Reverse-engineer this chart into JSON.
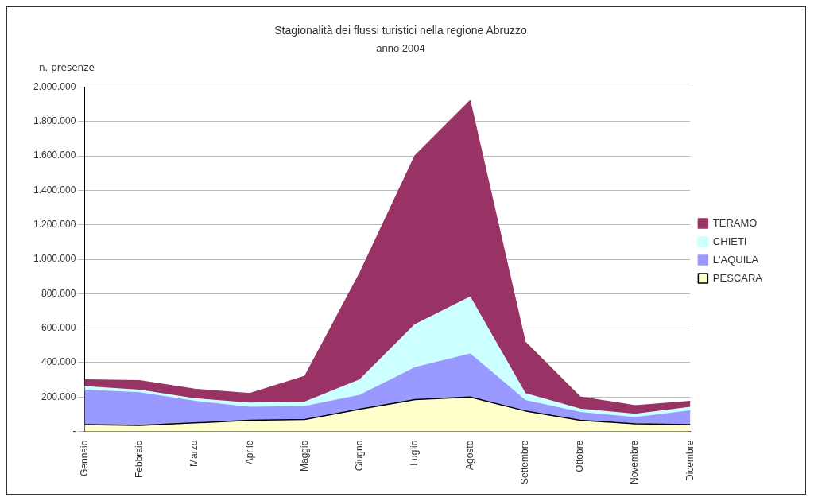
{
  "chart_data": {
    "type": "area",
    "title": "Stagionalità dei flussi turistici nella regione Abruzzo",
    "subtitle": "anno 2004",
    "ylabel": "n. presenze",
    "categories": [
      "Gennaio",
      "Febbraio",
      "Marzo",
      "Aprile",
      "Maggio",
      "Giugno",
      "Luglio",
      "Agosto",
      "Settembre",
      "Ottobre",
      "Novembre",
      "Dicembre"
    ],
    "stacked": true,
    "series": [
      {
        "name": "PESCARA",
        "color": "#ffffcc",
        "values": [
          40000,
          35000,
          50000,
          65000,
          70000,
          130000,
          185000,
          200000,
          120000,
          65000,
          45000,
          40000
        ]
      },
      {
        "name": "L'AQUILA",
        "color": "#9999ff",
        "values": [
          200000,
          190000,
          125000,
          75000,
          75000,
          80000,
          185000,
          250000,
          60000,
          45000,
          35000,
          80000
        ]
      },
      {
        "name": "CHIETI",
        "color": "#ccffff",
        "values": [
          20000,
          15000,
          15000,
          25000,
          25000,
          90000,
          250000,
          330000,
          40000,
          20000,
          20000,
          20000
        ]
      },
      {
        "name": "TERAMO",
        "color": "#993366",
        "values": [
          40000,
          55000,
          55000,
          55000,
          150000,
          620000,
          980000,
          1140000,
          300000,
          70000,
          50000,
          35000
        ]
      }
    ],
    "ylim": [
      0,
      2000000
    ],
    "yticks": [
      {
        "value": 0,
        "label": "-"
      },
      {
        "value": 200000,
        "label": "200.000"
      },
      {
        "value": 400000,
        "label": "400.000"
      },
      {
        "value": 600000,
        "label": "600.000"
      },
      {
        "value": 800000,
        "label": "800.000"
      },
      {
        "value": 1000000,
        "label": "1.000.000"
      },
      {
        "value": 1200000,
        "label": "1.200.000"
      },
      {
        "value": 1400000,
        "label": "1.400.000"
      },
      {
        "value": 1600000,
        "label": "1.600.000"
      },
      {
        "value": 1800000,
        "label": "1.800.000"
      },
      {
        "value": 2000000,
        "label": "2.000.000"
      }
    ],
    "grid": "y",
    "legend": "right",
    "marker": "none",
    "line_style": "solid"
  }
}
